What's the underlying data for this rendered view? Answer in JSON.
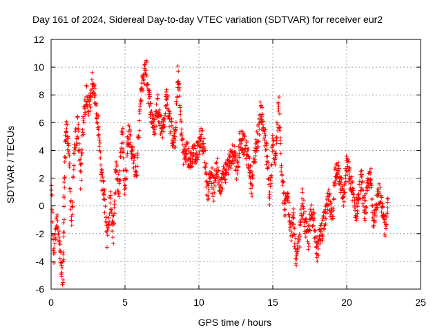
{
  "chart_data": {
    "type": "scatter",
    "title": "Day 161 of 2024, Sidereal Day-to-day VTEC variation (SDTVAR) for receiver eur2",
    "xlabel": "GPS time / hours",
    "ylabel": "SDTVAR / TECUs",
    "xlim": [
      0,
      25
    ],
    "ylim": [
      -6,
      12
    ],
    "xticks": [
      0,
      5,
      10,
      15,
      20,
      25
    ],
    "yticks": [
      -6,
      -4,
      -2,
      0,
      2,
      4,
      6,
      8,
      10,
      12
    ],
    "grid": true,
    "marker": "+",
    "color": "#ff0000",
    "series": [
      {
        "name": "SDTVAR",
        "description_points": [
          [
            0.0,
            1.5
          ],
          [
            0.2,
            -3.5
          ],
          [
            0.4,
            -1.0
          ],
          [
            0.6,
            -3.5
          ],
          [
            0.8,
            -5.0
          ],
          [
            0.9,
            1.0
          ],
          [
            1.0,
            6.0
          ],
          [
            1.2,
            4.0
          ],
          [
            1.4,
            -1.5
          ],
          [
            1.6,
            4.5
          ],
          [
            1.8,
            6.0
          ],
          [
            2.0,
            2.0
          ],
          [
            2.2,
            6.5
          ],
          [
            2.4,
            8.0
          ],
          [
            2.6,
            7.0
          ],
          [
            2.8,
            9.0
          ],
          [
            3.0,
            7.5
          ],
          [
            3.2,
            5.5
          ],
          [
            3.4,
            2.0
          ],
          [
            3.6,
            1.0
          ],
          [
            3.8,
            -2.5
          ],
          [
            4.0,
            0.5
          ],
          [
            4.2,
            -2.0
          ],
          [
            4.4,
            3.0
          ],
          [
            4.6,
            1.0
          ],
          [
            4.8,
            5.5
          ],
          [
            5.0,
            1.0
          ],
          [
            5.2,
            5.5
          ],
          [
            5.4,
            4.5
          ],
          [
            5.6,
            3.0
          ],
          [
            5.8,
            2.5
          ],
          [
            6.0,
            7.0
          ],
          [
            6.2,
            9.0
          ],
          [
            6.4,
            10.2
          ],
          [
            6.6,
            8.0
          ],
          [
            6.8,
            6.5
          ],
          [
            7.0,
            5.5
          ],
          [
            7.2,
            7.5
          ],
          [
            7.4,
            6.0
          ],
          [
            7.6,
            5.5
          ],
          [
            7.8,
            8.0
          ],
          [
            8.0,
            6.5
          ],
          [
            8.2,
            5.0
          ],
          [
            8.4,
            4.5
          ],
          [
            8.6,
            9.8
          ],
          [
            8.8,
            5.5
          ],
          [
            9.0,
            3.5
          ],
          [
            9.2,
            4.0
          ],
          [
            9.4,
            3.0
          ],
          [
            9.6,
            4.0
          ],
          [
            9.8,
            3.5
          ],
          [
            10.0,
            4.5
          ],
          [
            10.2,
            5.0
          ],
          [
            10.4,
            3.5
          ],
          [
            10.6,
            1.0
          ],
          [
            10.8,
            2.5
          ],
          [
            11.0,
            1.0
          ],
          [
            11.2,
            3.0
          ],
          [
            11.4,
            1.5
          ],
          [
            11.6,
            2.0
          ],
          [
            11.8,
            2.5
          ],
          [
            12.0,
            3.0
          ],
          [
            12.2,
            3.5
          ],
          [
            12.4,
            4.0
          ],
          [
            12.6,
            2.5
          ],
          [
            12.8,
            5.0
          ],
          [
            13.0,
            4.5
          ],
          [
            13.2,
            4.0
          ],
          [
            13.4,
            3.0
          ],
          [
            13.6,
            1.5
          ],
          [
            13.8,
            4.0
          ],
          [
            14.0,
            5.0
          ],
          [
            14.2,
            7.0
          ],
          [
            14.4,
            5.5
          ],
          [
            14.6,
            3.5
          ],
          [
            14.8,
            0.5
          ],
          [
            15.0,
            4.5
          ],
          [
            15.2,
            3.5
          ],
          [
            15.4,
            7.5
          ],
          [
            15.6,
            2.5
          ],
          [
            15.8,
            -0.5
          ],
          [
            16.0,
            1.5
          ],
          [
            16.2,
            -2.0
          ],
          [
            16.4,
            -1.0
          ],
          [
            16.6,
            -4.0
          ],
          [
            16.8,
            -2.5
          ],
          [
            17.0,
            0.5
          ],
          [
            17.2,
            -1.5
          ],
          [
            17.4,
            -2.5
          ],
          [
            17.6,
            -0.5
          ],
          [
            17.8,
            -1.0
          ],
          [
            18.0,
            -3.5
          ],
          [
            18.2,
            -2.0
          ],
          [
            18.4,
            -1.5
          ],
          [
            18.6,
            -0.5
          ],
          [
            18.8,
            0.5
          ],
          [
            19.0,
            -1.0
          ],
          [
            19.2,
            2.0
          ],
          [
            19.4,
            3.0
          ],
          [
            19.6,
            1.5
          ],
          [
            19.8,
            0.5
          ],
          [
            20.0,
            3.0
          ],
          [
            20.2,
            2.0
          ],
          [
            20.4,
            1.0
          ],
          [
            20.6,
            -0.5
          ],
          [
            20.8,
            0.5
          ],
          [
            21.0,
            2.0
          ],
          [
            21.2,
            -0.5
          ],
          [
            21.4,
            1.0
          ],
          [
            21.6,
            2.5
          ],
          [
            21.8,
            -1.5
          ],
          [
            22.0,
            0.5
          ],
          [
            22.2,
            1.0
          ],
          [
            22.4,
            -0.5
          ],
          [
            22.6,
            -1.5
          ],
          [
            22.8,
            0.5
          ]
        ]
      }
    ]
  }
}
